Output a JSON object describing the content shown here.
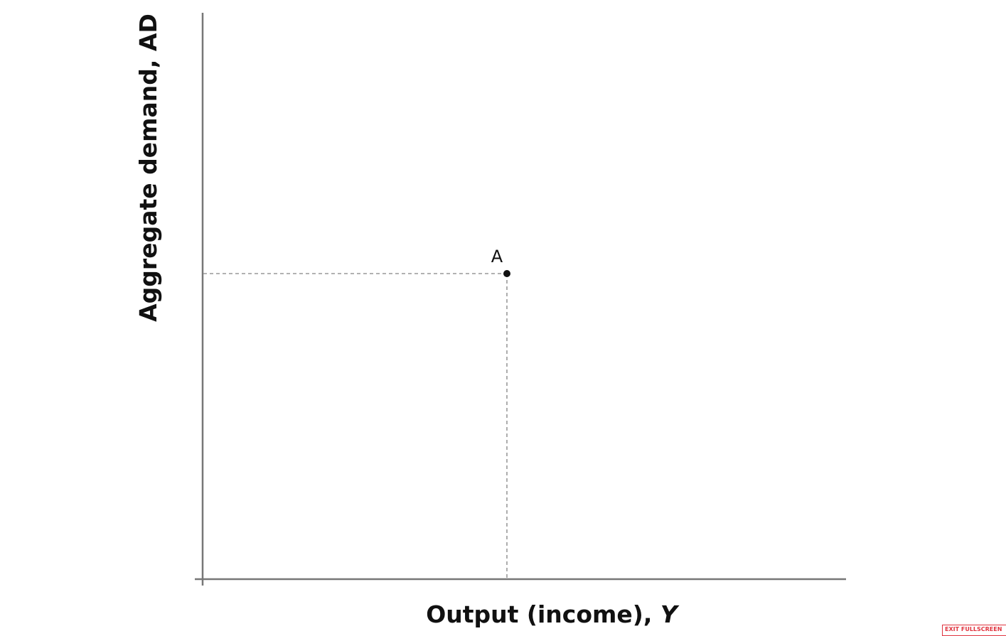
{
  "diagram": {
    "y_axis_label": "Aggregate demand, AD",
    "x_axis_label": "Output (income),",
    "x_axis_symbol": "Y",
    "point_label": "A"
  },
  "controls": {
    "exit_button": "EXIT FULLSCREEN"
  }
}
